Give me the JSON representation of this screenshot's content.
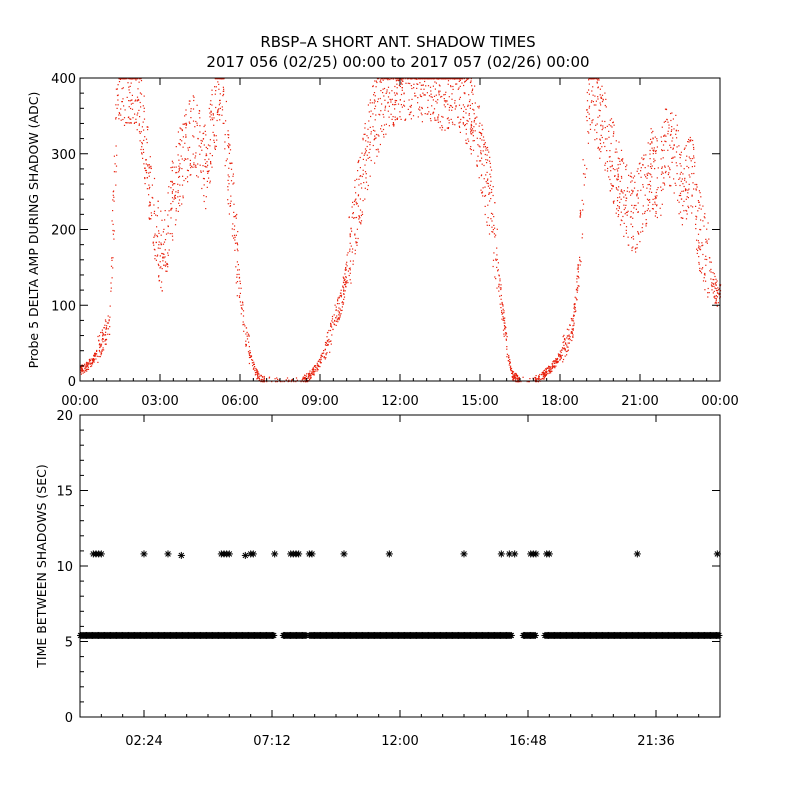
{
  "figure": {
    "title_line1": "RBSP–A SHORT ANT. SHADOW TIMES",
    "title_line2": "2017 056 (02/25) 00:00 to 2017 057 (02/26) 00:00"
  },
  "colors": {
    "background": "#ffffff",
    "axes": "#000000",
    "top_points": "#e8200c",
    "bottom_points": "#000000"
  },
  "chart_data": [
    {
      "type": "scatter",
      "ylabel": "Probe 5 DELTA AMP DURING SHADOW (ADC)",
      "xlabel": "",
      "xlim_hours": [
        0,
        24
      ],
      "ylim": [
        0,
        400
      ],
      "x_tick_labels": [
        "00:00",
        "03:00",
        "06:00",
        "09:00",
        "12:00",
        "15:00",
        "18:00",
        "21:00",
        "00:00"
      ],
      "y_tick_labels": [
        "0",
        "100",
        "200",
        "300",
        "400"
      ],
      "marker": "dot",
      "series": [
        {
          "x_hours": [
            0.0,
            0.25,
            0.5,
            0.7,
            0.9,
            1.1,
            1.25,
            1.4,
            1.5,
            1.7,
            1.8,
            2.0,
            2.2,
            2.7,
            2.9,
            3.1,
            3.3,
            3.5,
            3.7,
            3.9,
            4.1,
            4.3,
            4.5,
            4.7,
            5.0,
            5.3,
            5.5,
            5.8,
            6.0,
            6.2,
            6.4,
            6.6,
            6.8,
            7.0,
            7.5,
            7.9,
            8.3,
            8.6,
            8.9,
            9.1,
            9.3,
            9.5,
            9.8,
            10.0,
            10.3,
            10.6,
            10.9,
            11.2,
            11.5,
            11.8,
            12.0,
            12.4,
            12.8,
            13.2,
            13.6,
            14.0,
            14.3,
            14.6,
            14.9,
            15.1,
            15.4,
            15.6,
            15.8,
            16.0,
            16.2,
            16.5,
            17.0,
            17.4,
            17.7,
            18.0,
            18.3,
            18.5,
            18.7,
            18.9,
            19.1,
            19.3,
            19.6,
            19.9,
            20.2,
            20.5,
            20.8,
            21.1,
            21.4,
            21.7,
            22.0,
            22.3,
            22.6,
            22.9,
            23.2,
            23.5,
            23.8,
            24.0
          ],
          "y": [
            15,
            20,
            30,
            45,
            60,
            80,
            240,
            390,
            395,
            390,
            380,
            395,
            380,
            230,
            190,
            160,
            210,
            250,
            280,
            300,
            320,
            330,
            300,
            280,
            350,
            395,
            300,
            200,
            110,
            60,
            30,
            10,
            2,
            0,
            0,
            0,
            0,
            8,
            20,
            35,
            50,
            80,
            110,
            150,
            220,
            280,
            330,
            360,
            380,
            395,
            400,
            400,
            395,
            400,
            385,
            390,
            380,
            360,
            330,
            290,
            230,
            160,
            100,
            40,
            8,
            0,
            0,
            10,
            20,
            35,
            55,
            80,
            160,
            300,
            390,
            360,
            340,
            300,
            260,
            230,
            220,
            250,
            280,
            260,
            320,
            300,
            250,
            280,
            200,
            160,
            120,
            110
          ]
        }
      ]
    },
    {
      "type": "scatter",
      "ylabel": "TIME BETWEEN SHADOWS (SEC)",
      "xlabel": "",
      "xlim_hours": [
        0,
        24
      ],
      "ylim": [
        0,
        20
      ],
      "x_tick_labels": [
        "02:24",
        "07:12",
        "12:00",
        "16:48",
        "21:36"
      ],
      "y_tick_labels": [
        "0",
        "5",
        "10",
        "15",
        "20"
      ],
      "marker": "asterisk",
      "series": [
        {
          "x_hours": [
            0.5,
            0.6,
            0.7,
            0.8,
            2.4,
            3.3,
            3.8,
            5.3,
            5.4,
            5.5,
            5.6,
            6.2,
            6.4,
            6.5,
            7.3,
            7.9,
            8.0,
            8.1,
            8.2,
            8.6,
            8.7,
            9.9,
            11.6,
            14.4,
            15.8,
            16.1,
            16.3,
            16.9,
            17.0,
            17.1,
            17.5,
            17.6,
            20.9,
            23.9
          ],
          "y": [
            10.8,
            10.8,
            10.8,
            10.8,
            10.8,
            10.8,
            10.7,
            10.8,
            10.8,
            10.8,
            10.8,
            10.7,
            10.8,
            10.8,
            10.8,
            10.8,
            10.8,
            10.8,
            10.8,
            10.8,
            10.8,
            10.8,
            10.8,
            10.8,
            10.8,
            10.8,
            10.8,
            10.8,
            10.8,
            10.8,
            10.8,
            10.8,
            10.8,
            10.8
          ]
        },
        {
          "x_range_hours": [
            0.0,
            24.0
          ],
          "y": 5.4,
          "gaps_hours": [
            [
              7.3,
              7.6
            ],
            [
              8.5,
              8.6
            ],
            [
              16.2,
              16.6
            ],
            [
              17.1,
              17.4
            ]
          ]
        }
      ]
    }
  ]
}
